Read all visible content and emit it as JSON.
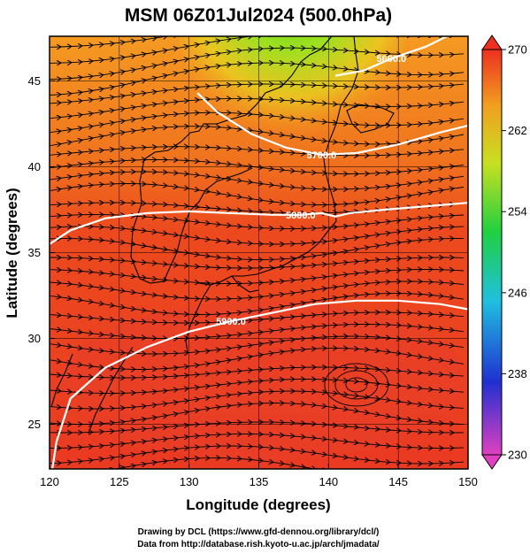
{
  "chart_data": {
    "type": "heatmap",
    "title": "MSM 06Z01Jul2024 (500.0hPa)",
    "xlabel": "Longitude (degrees)",
    "ylabel": "Latitude  (degrees)",
    "xlim": [
      120,
      150
    ],
    "ylim": [
      22.4,
      47.6
    ],
    "x_ticks": [
      "120",
      "125",
      "130",
      "135",
      "140",
      "145",
      "150"
    ],
    "y_ticks": [
      "25",
      "30",
      "35",
      "40",
      "45"
    ],
    "grid": true,
    "field": "temperature-like shading with streamlines and white geopotential height contours",
    "colorbar": {
      "range": [
        230,
        270
      ],
      "ticks": [
        "230",
        "238",
        "246",
        "254",
        "262",
        "270"
      ],
      "colors": [
        "#e040c0",
        "#2030d0",
        "#20c0e0",
        "#20d040",
        "#c8e020",
        "#f0a020",
        "#ee3020"
      ]
    },
    "contours": [
      {
        "label": "5600.0",
        "points": [
          [
            140.5,
            45.3
          ],
          [
            142.5,
            45.6
          ],
          [
            144.5,
            46.3
          ],
          [
            147,
            47
          ],
          [
            148.5,
            47.6
          ]
        ]
      },
      {
        "label": "5700.0",
        "points": [
          [
            130.6,
            44.3
          ],
          [
            132,
            43.2
          ],
          [
            134.5,
            41.9
          ],
          [
            137,
            41.1
          ],
          [
            139.5,
            40.7
          ],
          [
            142,
            40.8
          ],
          [
            145,
            41.3
          ],
          [
            148,
            42
          ],
          [
            150,
            42.4
          ]
        ]
      },
      {
        "label": "5800.0",
        "points": [
          [
            120,
            35.5
          ],
          [
            121.5,
            36.3
          ],
          [
            124,
            37
          ],
          [
            127,
            37.3
          ],
          [
            130,
            37.4
          ],
          [
            133,
            37.3
          ],
          [
            136,
            37.2
          ],
          [
            138,
            37.2
          ],
          [
            139.5,
            37.3
          ],
          [
            140.5,
            37.1
          ],
          [
            141.5,
            37.3
          ],
          [
            144,
            37.5
          ],
          [
            147,
            37.7
          ],
          [
            150,
            37.9
          ]
        ]
      },
      {
        "label": "5900.0",
        "points": [
          [
            120.2,
            22.4
          ],
          [
            120.5,
            24
          ],
          [
            121.5,
            26.5
          ],
          [
            124,
            28.3
          ],
          [
            127,
            29.5
          ],
          [
            130,
            30.4
          ],
          [
            133,
            31
          ],
          [
            136,
            31.5
          ],
          [
            139,
            32
          ],
          [
            142,
            32.2
          ],
          [
            145,
            32.2
          ],
          [
            148,
            32
          ],
          [
            150,
            31.7
          ]
        ]
      }
    ],
    "streamline_flow": "mostly westerly (west to east), cyclonic circulation near 142E 27N"
  },
  "credits": {
    "line1": "Drawing by DCL (https://www.gfd-dennou.org/library/dcl/)",
    "line2": "Data from http://database.rish.kyoto-u.ac.jp/arch/jmadata/"
  }
}
